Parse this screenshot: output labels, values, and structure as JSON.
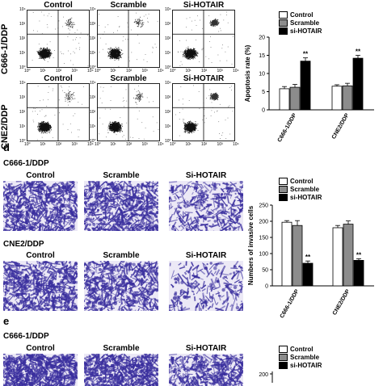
{
  "flow": {
    "row1_label": "C666-1/DDP",
    "row2_label": "CNE2/DDP",
    "titles": [
      "Control",
      "Scramble",
      "Si-HOTAIR"
    ],
    "tick_labels": [
      "10⁰",
      "10¹",
      "10²",
      "10³",
      "10⁴"
    ],
    "quadrant_line_color": "#000000"
  },
  "panel_d": {
    "letter": "d",
    "row1_label": "C666-1/DDP",
    "row2_label": "CNE2/DDP",
    "titles": [
      "Control",
      "Scramble",
      "Si-HOTAIR"
    ]
  },
  "panel_e": {
    "letter": "e",
    "row1_label": "C666-1/DDP",
    "titles": [
      "Control",
      "Scramble",
      "Si-HOTAIR"
    ]
  },
  "legend": {
    "control": "Control",
    "scramble": "Scramble",
    "si_hotair": "si-HOTAIR"
  },
  "colors": {
    "control": "#ffffff",
    "scramble": "#8c8c8c",
    "si_hotair": "#000000",
    "stain": "#3a2f9e",
    "stain_bg": "#ece9f6"
  },
  "chart_data": [
    {
      "type": "bar",
      "ylabel": "Apoptosis rate (%)",
      "ylim": [
        0,
        20
      ],
      "yticks": [
        "0",
        "5",
        "10",
        "15",
        "20"
      ],
      "categories": [
        "C666-1/DDP",
        "CNE2/DDP"
      ],
      "series": [
        {
          "name": "Control",
          "values": [
            5.8,
            6.5
          ],
          "errors": [
            0.6,
            0.4
          ]
        },
        {
          "name": "Scramble",
          "values": [
            6.2,
            6.6
          ],
          "errors": [
            0.8,
            0.7
          ]
        },
        {
          "name": "si-HOTAIR",
          "values": [
            13.4,
            14.2
          ],
          "errors": [
            0.9,
            0.8
          ]
        }
      ],
      "annotations": [
        "**",
        "**"
      ],
      "legend_position": "top-left"
    },
    {
      "type": "bar",
      "ylabel": "Numbers of invasive cells",
      "ylim": [
        0,
        250
      ],
      "yticks": [
        "0",
        "50",
        "100",
        "150",
        "200",
        "250"
      ],
      "categories": [
        "C666-1/DDP",
        "CNE2/DDP"
      ],
      "series": [
        {
          "name": "Control",
          "values": [
            197,
            180
          ],
          "errors": [
            5,
            7
          ]
        },
        {
          "name": "Scramble",
          "values": [
            187,
            191
          ],
          "errors": [
            15,
            10
          ]
        },
        {
          "name": "si-HOTAIR",
          "values": [
            70,
            79
          ],
          "errors": [
            7,
            5
          ]
        }
      ],
      "annotations": [
        "**",
        "**"
      ],
      "legend_position": "top-left"
    },
    {
      "type": "bar",
      "ytick_visible": "200",
      "legend_position": "top-left"
    }
  ]
}
